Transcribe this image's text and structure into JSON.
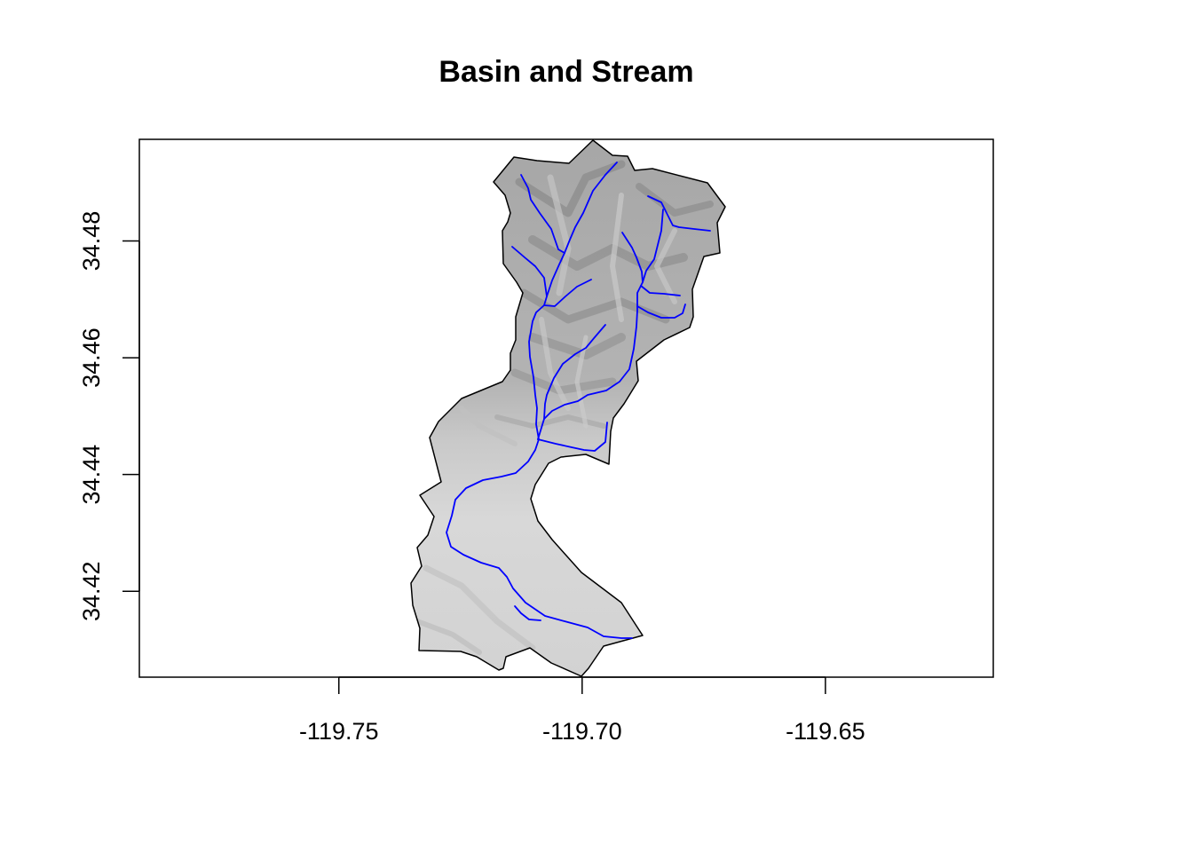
{
  "chart_data": {
    "type": "map",
    "title": "Basin and Stream",
    "xlabel": "",
    "ylabel": "",
    "xlim": [
      -119.791,
      -119.6155
    ],
    "ylim": [
      34.4053,
      34.4974
    ],
    "x_ticks": [
      {
        "value": -119.75,
        "label": "-119.75"
      },
      {
        "value": -119.7,
        "label": "-119.70"
      },
      {
        "value": -119.65,
        "label": "-119.65"
      }
    ],
    "y_ticks": [
      {
        "value": 34.42,
        "label": "34.42"
      },
      {
        "value": 34.44,
        "label": "34.44"
      },
      {
        "value": 34.46,
        "label": "34.46"
      },
      {
        "value": 34.48,
        "label": "34.48"
      }
    ],
    "layers": [
      {
        "name": "hillshade",
        "kind": "raster",
        "colors": {
          "steep": "#8f8f8f",
          "mid": "#b5b5b5",
          "flat": "#d6d6d6",
          "light": "#e8e8e8"
        }
      },
      {
        "name": "basin",
        "kind": "polygon",
        "stroke": "#000000",
        "fill": "none"
      },
      {
        "name": "stream",
        "kind": "lines",
        "stroke": "#0000ff"
      }
    ]
  }
}
